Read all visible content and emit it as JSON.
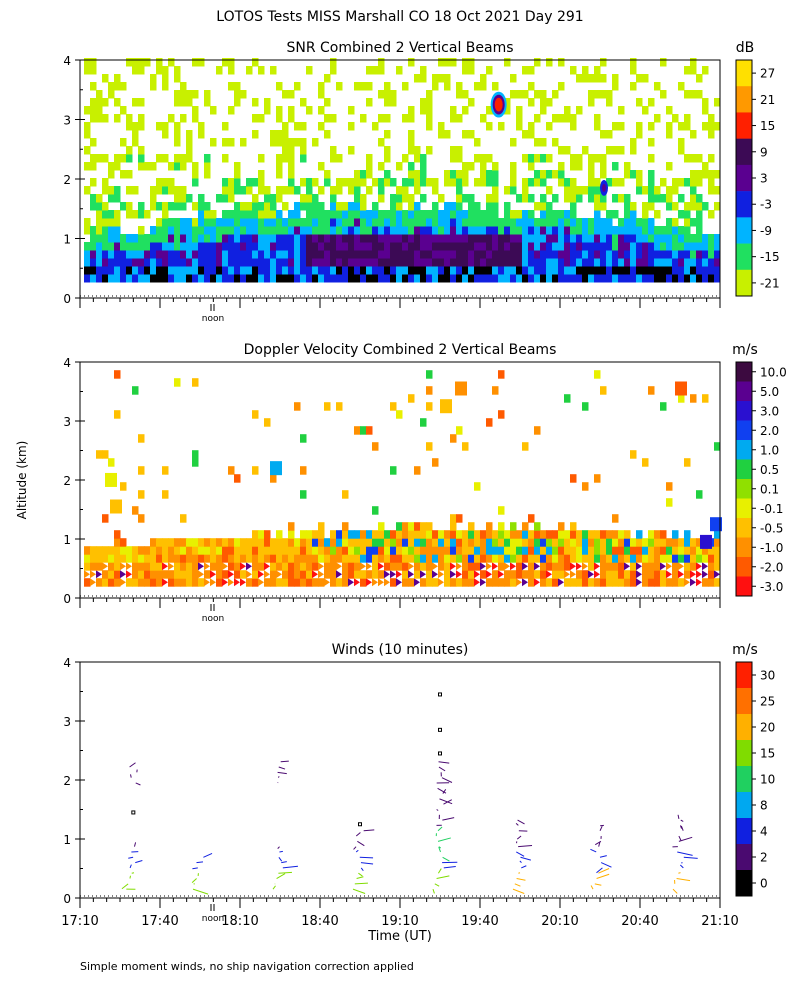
{
  "title": "LOTOS Tests MISS Marshall CO  18 Oct 2021 Day 291",
  "shared_ylabel": "Altitude (km)",
  "noon_label": "noon",
  "footnote": "Simple moment winds, no ship navigation correction applied",
  "chart_data": [
    {
      "id": "snr",
      "type": "heatmap",
      "title": "SNR Combined 2 Vertical Beams",
      "units": "dB",
      "xlabel": "",
      "ylabel": "Altitude (km)",
      "xlim": [
        1030,
        1270
      ],
      "ylim": [
        0,
        4
      ],
      "yticks": [
        0,
        1,
        2,
        3,
        4
      ],
      "colorbar_labels": [
        "27",
        "21",
        "15",
        "9",
        "3",
        "-3",
        "-9",
        "-15",
        "-21"
      ],
      "colorbar_colors": [
        "#FFE000",
        "#FF9900",
        "#FF2000",
        "#3C0A55",
        "#5A0090",
        "#1020E0",
        "#00B4FF",
        "#20E060",
        "#C8F000"
      ],
      "features": [
        {
          "t0": 1035,
          "t1": 1270,
          "h0": 0.25,
          "h1": 0.45,
          "value": -3
        },
        {
          "t0": 1105,
          "t1": 1200,
          "h0": 0.25,
          "h1": 1.0,
          "value": 9
        },
        {
          "t0": 1185,
          "t1": 1189,
          "h0": 3.1,
          "h1": 3.4,
          "value": 15
        },
        {
          "t0": 1225,
          "t1": 1228,
          "h0": 1.75,
          "h1": 1.95,
          "value": 3
        }
      ]
    },
    {
      "id": "velocity",
      "type": "heatmap",
      "title": "Doppler Velocity Combined 2 Vertical Beams",
      "units": "m/s",
      "xlabel": "",
      "ylabel": "Altitude (km)",
      "xlim": [
        1030,
        1270
      ],
      "ylim": [
        0,
        4
      ],
      "yticks": [
        0,
        1,
        2,
        3,
        4
      ],
      "colorbar_labels": [
        "10.0",
        "5.0",
        "3.0",
        "2.0",
        "1.0",
        "0.5",
        "0.1",
        "-0.1",
        "-0.5",
        "-1.0",
        "-2.0",
        "-3.0"
      ],
      "colorbar_colors": [
        "#3C0A40",
        "#5A0090",
        "#2A10D0",
        "#1040F0",
        "#00AAF0",
        "#20D040",
        "#90E000",
        "#E8F000",
        "#FFC000",
        "#FF9000",
        "#FF5A00",
        "#FF1010"
      ]
    },
    {
      "id": "winds",
      "type": "scatter",
      "title": "Winds (10 minutes)",
      "units": "m/s",
      "xlabel": "Time (UT)",
      "ylabel": "Altitude (km)",
      "xlim": [
        1030,
        1270
      ],
      "ylim": [
        0,
        4
      ],
      "yticks": [
        0,
        1,
        2,
        3,
        4
      ],
      "xtick_labels": [
        "17:10",
        "17:40",
        "18:10",
        "18:40",
        "19:10",
        "19:40",
        "20:10",
        "20:40",
        "21:10"
      ],
      "colorbar_labels": [
        "30",
        "25",
        "20",
        "15",
        "10",
        "8",
        "4",
        "2",
        "0"
      ],
      "colorbar_colors": [
        "#FF2000",
        "#FF7000",
        "#FFB000",
        "#80DC00",
        "#20D060",
        "#00A8F0",
        "#1020E0",
        "#4A0A70",
        "#000000"
      ],
      "profile_times": [
        1050,
        1075,
        1105,
        1135,
        1165,
        1195,
        1225,
        1255
      ],
      "points": [
        {
          "t": 1165,
          "alt": 3.45
        },
        {
          "t": 1165,
          "alt": 2.85
        },
        {
          "t": 1165,
          "alt": 2.45
        },
        {
          "t": 1050,
          "alt": 1.45
        },
        {
          "t": 1135,
          "alt": 1.25
        }
      ]
    }
  ]
}
